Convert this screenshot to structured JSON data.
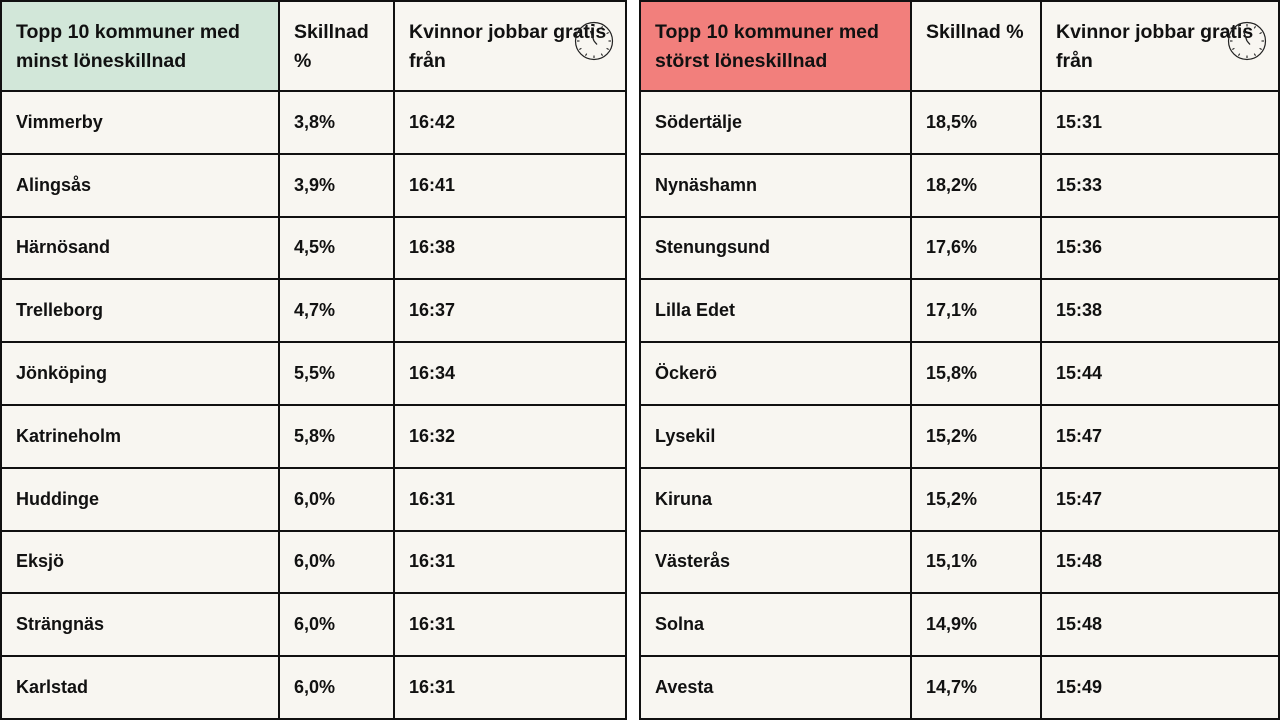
{
  "left": {
    "headers": [
      "Topp 10 kommuner med minst löneskillnad",
      "Skillnad %",
      "Kvinnor jobbar gratis från"
    ],
    "rows": [
      [
        "Vimmerby",
        "3,8%",
        "16:42"
      ],
      [
        "Alingsås",
        "3,9%",
        "16:41"
      ],
      [
        "Härnösand",
        "4,5%",
        "16:38"
      ],
      [
        "Trelleborg",
        "4,7%",
        "16:37"
      ],
      [
        "Jönköping",
        "5,5%",
        "16:34"
      ],
      [
        "Katrineholm",
        "5,8%",
        "16:32"
      ],
      [
        "Huddinge",
        "6,0%",
        "16:31"
      ],
      [
        "Eksjö",
        "6,0%",
        "16:31"
      ],
      [
        "Strängnäs",
        "6,0%",
        "16:31"
      ],
      [
        "Karlstad",
        "6,0%",
        "16:31"
      ]
    ],
    "header_color": "#d2e7d9",
    "icon": "clock-icon"
  },
  "right": {
    "headers": [
      "Topp 10 kommuner med störst löneskillnad",
      "Skillnad %",
      "Kvinnor jobbar gratis från"
    ],
    "rows": [
      [
        "Södertälje",
        "18,5%",
        "15:31"
      ],
      [
        "Nynäshamn",
        "18,2%",
        "15:33"
      ],
      [
        "Stenungsund",
        "17,6%",
        "15:36"
      ],
      [
        "Lilla Edet",
        "17,1%",
        "15:38"
      ],
      [
        "Öckerö",
        "15,8%",
        "15:44"
      ],
      [
        "Lysekil",
        "15,2%",
        "15:47"
      ],
      [
        "Kiruna",
        "15,2%",
        "15:47"
      ],
      [
        "Västerås",
        "15,1%",
        "15:48"
      ],
      [
        "Solna",
        "14,9%",
        "15:48"
      ],
      [
        "Avesta",
        "14,7%",
        "15:49"
      ]
    ],
    "header_color": "#f27f7c",
    "icon": "clock-icon"
  }
}
